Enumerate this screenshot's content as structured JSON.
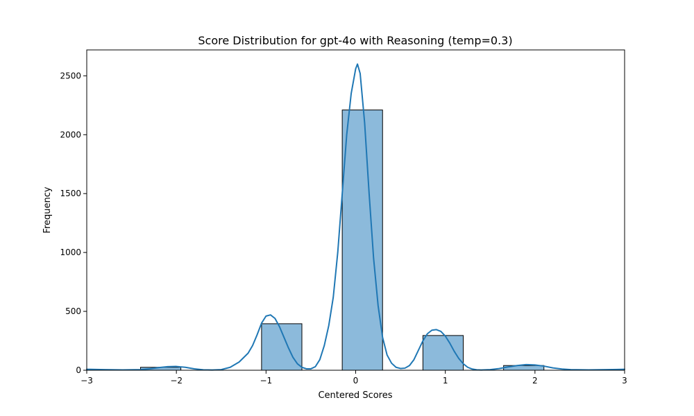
{
  "chart_data": {
    "type": "bar",
    "title": "Score Distribution for gpt-4o with Reasoning (temp=0.3)",
    "xlabel": "Centered Scores",
    "ylabel": "Frequency",
    "xlim": [
      -3,
      3
    ],
    "ylim": [
      0,
      2720
    ],
    "xticks": [
      -3,
      -2,
      -1,
      0,
      1,
      2,
      3
    ],
    "xtick_labels": [
      "−3",
      "−2",
      "−1",
      "0",
      "1",
      "2",
      "3"
    ],
    "yticks": [
      0,
      500,
      1000,
      1500,
      2000,
      2500
    ],
    "ytick_labels": [
      "0",
      "500",
      "1000",
      "1500",
      "2000",
      "2500"
    ],
    "grid": false,
    "bins": [
      {
        "x0": -2.4,
        "x1": -1.95,
        "count": 25
      },
      {
        "x0": -1.05,
        "x1": -0.6,
        "count": 395
      },
      {
        "x0": -0.15,
        "x1": 0.3,
        "count": 2210
      },
      {
        "x0": 0.75,
        "x1": 1.2,
        "count": 295
      },
      {
        "x0": 1.65,
        "x1": 2.1,
        "count": 40
      }
    ],
    "kde": {
      "x": [
        -3,
        -2.8,
        -2.6,
        -2.4,
        -2.3,
        -2.2,
        -2.1,
        -2.0,
        -1.9,
        -1.8,
        -1.7,
        -1.6,
        -1.5,
        -1.4,
        -1.3,
        -1.2,
        -1.15,
        -1.1,
        -1.05,
        -1.0,
        -0.95,
        -0.9,
        -0.85,
        -0.8,
        -0.75,
        -0.7,
        -0.65,
        -0.6,
        -0.55,
        -0.5,
        -0.45,
        -0.4,
        -0.35,
        -0.3,
        -0.25,
        -0.2,
        -0.15,
        -0.1,
        -0.05,
        0.0,
        0.02,
        0.05,
        0.1,
        0.15,
        0.2,
        0.25,
        0.3,
        0.35,
        0.4,
        0.45,
        0.5,
        0.55,
        0.6,
        0.65,
        0.7,
        0.75,
        0.8,
        0.85,
        0.9,
        0.95,
        1.0,
        1.05,
        1.1,
        1.15,
        1.2,
        1.25,
        1.3,
        1.35,
        1.4,
        1.5,
        1.6,
        1.7,
        1.8,
        1.9,
        2.0,
        2.1,
        2.2,
        2.3,
        2.4,
        2.6,
        2.8,
        3.0
      ],
      "y": [
        8,
        5,
        3,
        5,
        12,
        22,
        30,
        32,
        25,
        12,
        4,
        2,
        5,
        25,
        70,
        145,
        210,
        300,
        400,
        460,
        470,
        440,
        370,
        280,
        190,
        110,
        55,
        25,
        12,
        12,
        30,
        90,
        210,
        380,
        620,
        1000,
        1500,
        2000,
        2350,
        2560,
        2600,
        2520,
        2100,
        1500,
        950,
        550,
        280,
        130,
        60,
        25,
        15,
        18,
        40,
        90,
        170,
        250,
        310,
        340,
        345,
        330,
        290,
        230,
        160,
        100,
        55,
        25,
        10,
        4,
        2,
        5,
        14,
        28,
        40,
        48,
        45,
        35,
        20,
        10,
        5,
        3,
        5,
        8
      ]
    },
    "colors": {
      "bar_fill": "#8cbadb",
      "bar_edge": "#000000",
      "kde_line": "#1f77b4"
    }
  }
}
